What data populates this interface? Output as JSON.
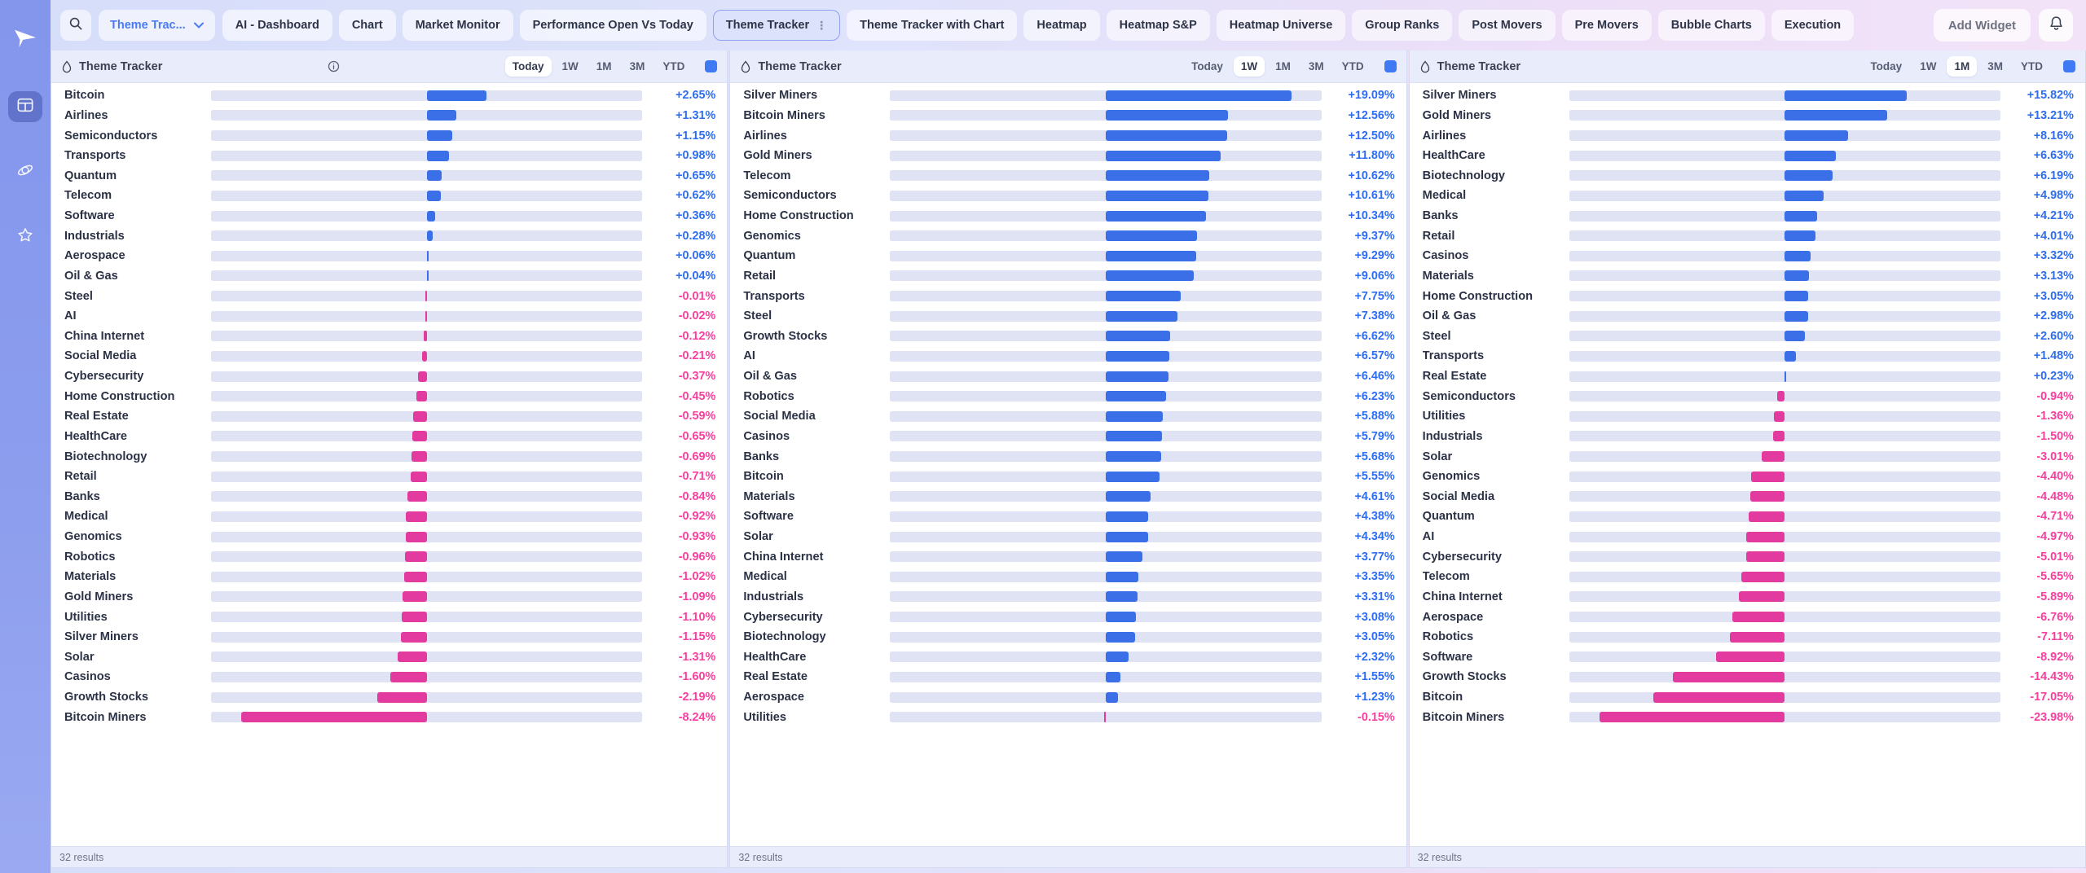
{
  "colors": {
    "positive": "#3b6fe8",
    "negative": "#e23a9e",
    "positive_text": "#2d6df2",
    "negative_text": "#fb3d9e",
    "accent": "#3f79f3"
  },
  "sidebar": {
    "items": [
      {
        "icon": "dashboard-grid",
        "active": true
      },
      {
        "icon": "orbit",
        "active": false
      },
      {
        "icon": "star",
        "active": false
      }
    ]
  },
  "topbar": {
    "workspace_selector": {
      "label": "Theme Trac..."
    },
    "tabs": [
      {
        "label": "AI - Dashboard",
        "active": false
      },
      {
        "label": "Chart",
        "active": false
      },
      {
        "label": "Market Monitor",
        "active": false
      },
      {
        "label": "Performance Open Vs Today",
        "active": false
      },
      {
        "label": "Theme Tracker",
        "active": true
      },
      {
        "label": "Theme Tracker with Chart",
        "active": false
      },
      {
        "label": "Heatmap",
        "active": false
      },
      {
        "label": "Heatmap S&P",
        "active": false
      },
      {
        "label": "Heatmap Universe",
        "active": false
      },
      {
        "label": "Group Ranks",
        "active": false
      },
      {
        "label": "Post Movers",
        "active": false
      },
      {
        "label": "Pre Movers",
        "active": false
      },
      {
        "label": "Bubble Charts",
        "active": false
      },
      {
        "label": "Execution",
        "active": false
      }
    ],
    "add_widget_label": "Add Widget"
  },
  "panels": [
    {
      "title": "Theme Tracker",
      "has_info_icon": true,
      "periods": [
        "Today",
        "1W",
        "1M",
        "3M",
        "YTD"
      ],
      "active_period": "Today",
      "results_label": "32 results",
      "rows": [
        {
          "label": "Bitcoin",
          "value": 2.65,
          "display": "+2.65%"
        },
        {
          "label": "Airlines",
          "value": 1.31,
          "display": "+1.31%"
        },
        {
          "label": "Semiconductors",
          "value": 1.15,
          "display": "+1.15%"
        },
        {
          "label": "Transports",
          "value": 0.98,
          "display": "+0.98%"
        },
        {
          "label": "Quantum",
          "value": 0.65,
          "display": "+0.65%"
        },
        {
          "label": "Telecom",
          "value": 0.62,
          "display": "+0.62%"
        },
        {
          "label": "Software",
          "value": 0.36,
          "display": "+0.36%"
        },
        {
          "label": "Industrials",
          "value": 0.28,
          "display": "+0.28%"
        },
        {
          "label": "Aerospace",
          "value": 0.06,
          "display": "+0.06%"
        },
        {
          "label": "Oil & Gas",
          "value": 0.04,
          "display": "+0.04%"
        },
        {
          "label": "Steel",
          "value": -0.01,
          "display": "-0.01%"
        },
        {
          "label": "AI",
          "value": -0.02,
          "display": "-0.02%"
        },
        {
          "label": "China Internet",
          "value": -0.12,
          "display": "-0.12%"
        },
        {
          "label": "Social Media",
          "value": -0.21,
          "display": "-0.21%"
        },
        {
          "label": "Cybersecurity",
          "value": -0.37,
          "display": "-0.37%"
        },
        {
          "label": "Home Construction",
          "value": -0.45,
          "display": "-0.45%"
        },
        {
          "label": "Real Estate",
          "value": -0.59,
          "display": "-0.59%"
        },
        {
          "label": "HealthCare",
          "value": -0.65,
          "display": "-0.65%"
        },
        {
          "label": "Biotechnology",
          "value": -0.69,
          "display": "-0.69%"
        },
        {
          "label": "Retail",
          "value": -0.71,
          "display": "-0.71%"
        },
        {
          "label": "Banks",
          "value": -0.84,
          "display": "-0.84%"
        },
        {
          "label": "Medical",
          "value": -0.92,
          "display": "-0.92%"
        },
        {
          "label": "Genomics",
          "value": -0.93,
          "display": "-0.93%"
        },
        {
          "label": "Robotics",
          "value": -0.96,
          "display": "-0.96%"
        },
        {
          "label": "Materials",
          "value": -1.02,
          "display": "-1.02%"
        },
        {
          "label": "Gold Miners",
          "value": -1.09,
          "display": "-1.09%"
        },
        {
          "label": "Utilities",
          "value": -1.1,
          "display": "-1.10%"
        },
        {
          "label": "Silver Miners",
          "value": -1.15,
          "display": "-1.15%"
        },
        {
          "label": "Solar",
          "value": -1.31,
          "display": "-1.31%"
        },
        {
          "label": "Casinos",
          "value": -1.6,
          "display": "-1.60%"
        },
        {
          "label": "Growth Stocks",
          "value": -2.19,
          "display": "-2.19%"
        },
        {
          "label": "Bitcoin Miners",
          "value": -8.24,
          "display": "-8.24%"
        }
      ]
    },
    {
      "title": "Theme Tracker",
      "has_info_icon": false,
      "periods": [
        "Today",
        "1W",
        "1M",
        "3M",
        "YTD"
      ],
      "active_period": "1W",
      "results_label": "32 results",
      "rows": [
        {
          "label": "Silver Miners",
          "value": 19.09,
          "display": "+19.09%"
        },
        {
          "label": "Bitcoin Miners",
          "value": 12.56,
          "display": "+12.56%"
        },
        {
          "label": "Airlines",
          "value": 12.5,
          "display": "+12.50%"
        },
        {
          "label": "Gold Miners",
          "value": 11.8,
          "display": "+11.80%"
        },
        {
          "label": "Telecom",
          "value": 10.62,
          "display": "+10.62%"
        },
        {
          "label": "Semiconductors",
          "value": 10.61,
          "display": "+10.61%"
        },
        {
          "label": "Home Construction",
          "value": 10.34,
          "display": "+10.34%"
        },
        {
          "label": "Genomics",
          "value": 9.37,
          "display": "+9.37%"
        },
        {
          "label": "Quantum",
          "value": 9.29,
          "display": "+9.29%"
        },
        {
          "label": "Retail",
          "value": 9.06,
          "display": "+9.06%"
        },
        {
          "label": "Transports",
          "value": 7.75,
          "display": "+7.75%"
        },
        {
          "label": "Steel",
          "value": 7.38,
          "display": "+7.38%"
        },
        {
          "label": "Growth Stocks",
          "value": 6.62,
          "display": "+6.62%"
        },
        {
          "label": "AI",
          "value": 6.57,
          "display": "+6.57%"
        },
        {
          "label": "Oil & Gas",
          "value": 6.46,
          "display": "+6.46%"
        },
        {
          "label": "Robotics",
          "value": 6.23,
          "display": "+6.23%"
        },
        {
          "label": "Social Media",
          "value": 5.88,
          "display": "+5.88%"
        },
        {
          "label": "Casinos",
          "value": 5.79,
          "display": "+5.79%"
        },
        {
          "label": "Banks",
          "value": 5.68,
          "display": "+5.68%"
        },
        {
          "label": "Bitcoin",
          "value": 5.55,
          "display": "+5.55%"
        },
        {
          "label": "Materials",
          "value": 4.61,
          "display": "+4.61%"
        },
        {
          "label": "Software",
          "value": 4.38,
          "display": "+4.38%"
        },
        {
          "label": "Solar",
          "value": 4.34,
          "display": "+4.34%"
        },
        {
          "label": "China Internet",
          "value": 3.77,
          "display": "+3.77%"
        },
        {
          "label": "Medical",
          "value": 3.35,
          "display": "+3.35%"
        },
        {
          "label": "Industrials",
          "value": 3.31,
          "display": "+3.31%"
        },
        {
          "label": "Cybersecurity",
          "value": 3.08,
          "display": "+3.08%"
        },
        {
          "label": "Biotechnology",
          "value": 3.05,
          "display": "+3.05%"
        },
        {
          "label": "HealthCare",
          "value": 2.32,
          "display": "+2.32%"
        },
        {
          "label": "Real Estate",
          "value": 1.55,
          "display": "+1.55%"
        },
        {
          "label": "Aerospace",
          "value": 1.23,
          "display": "+1.23%"
        },
        {
          "label": "Utilities",
          "value": -0.15,
          "display": "-0.15%"
        }
      ]
    },
    {
      "title": "Theme Tracker",
      "has_info_icon": false,
      "periods": [
        "Today",
        "1W",
        "1M",
        "3M",
        "YTD"
      ],
      "active_period": "1M",
      "results_label": "32 results",
      "rows": [
        {
          "label": "Silver Miners",
          "value": 15.82,
          "display": "+15.82%"
        },
        {
          "label": "Gold Miners",
          "value": 13.21,
          "display": "+13.21%"
        },
        {
          "label": "Airlines",
          "value": 8.16,
          "display": "+8.16%"
        },
        {
          "label": "HealthCare",
          "value": 6.63,
          "display": "+6.63%"
        },
        {
          "label": "Biotechnology",
          "value": 6.19,
          "display": "+6.19%"
        },
        {
          "label": "Medical",
          "value": 4.98,
          "display": "+4.98%"
        },
        {
          "label": "Banks",
          "value": 4.21,
          "display": "+4.21%"
        },
        {
          "label": "Retail",
          "value": 4.01,
          "display": "+4.01%"
        },
        {
          "label": "Casinos",
          "value": 3.32,
          "display": "+3.32%"
        },
        {
          "label": "Materials",
          "value": 3.13,
          "display": "+3.13%"
        },
        {
          "label": "Home Construction",
          "value": 3.05,
          "display": "+3.05%"
        },
        {
          "label": "Oil & Gas",
          "value": 2.98,
          "display": "+2.98%"
        },
        {
          "label": "Steel",
          "value": 2.6,
          "display": "+2.60%"
        },
        {
          "label": "Transports",
          "value": 1.48,
          "display": "+1.48%"
        },
        {
          "label": "Real Estate",
          "value": 0.23,
          "display": "+0.23%"
        },
        {
          "label": "Semiconductors",
          "value": -0.94,
          "display": "-0.94%"
        },
        {
          "label": "Utilities",
          "value": -1.36,
          "display": "-1.36%"
        },
        {
          "label": "Industrials",
          "value": -1.5,
          "display": "-1.50%"
        },
        {
          "label": "Solar",
          "value": -3.01,
          "display": "-3.01%"
        },
        {
          "label": "Genomics",
          "value": -4.4,
          "display": "-4.40%"
        },
        {
          "label": "Social Media",
          "value": -4.48,
          "display": "-4.48%"
        },
        {
          "label": "Quantum",
          "value": -4.71,
          "display": "-4.71%"
        },
        {
          "label": "AI",
          "value": -4.97,
          "display": "-4.97%"
        },
        {
          "label": "Cybersecurity",
          "value": -5.01,
          "display": "-5.01%"
        },
        {
          "label": "Telecom",
          "value": -5.65,
          "display": "-5.65%"
        },
        {
          "label": "China Internet",
          "value": -5.89,
          "display": "-5.89%"
        },
        {
          "label": "Aerospace",
          "value": -6.76,
          "display": "-6.76%"
        },
        {
          "label": "Robotics",
          "value": -7.11,
          "display": "-7.11%"
        },
        {
          "label": "Software",
          "value": -8.92,
          "display": "-8.92%"
        },
        {
          "label": "Growth Stocks",
          "value": -14.43,
          "display": "-14.43%"
        },
        {
          "label": "Bitcoin",
          "value": -17.05,
          "display": "-17.05%"
        },
        {
          "label": "Bitcoin Miners",
          "value": -23.98,
          "display": "-23.98%"
        }
      ]
    }
  ]
}
